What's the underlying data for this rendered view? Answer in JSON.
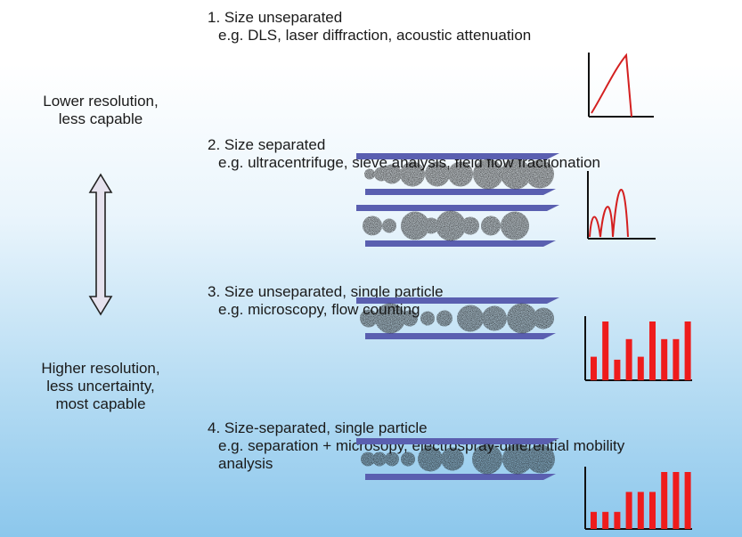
{
  "left_labels": {
    "top": [
      "Lower resolution,",
      "less capable"
    ],
    "bottom": [
      "Higher resolution,",
      "less uncertainty,",
      "most capable"
    ]
  },
  "steps": [
    {
      "title": "1. Size unseparated",
      "examples": [
        "e.g. DLS, laser diffraction, acoustic attenuation"
      ],
      "plot": "single-peak"
    },
    {
      "title": "2. Size separated",
      "examples": [
        "e.g. ultracentrifuge, sieve analysis, field flow fractionation"
      ],
      "plot": "multi-peak"
    },
    {
      "title": "3. Size unseparated, single particle",
      "examples": [
        "e.g. microscopy, flow counting"
      ],
      "plot": "histogram",
      "bars": [
        0.4,
        1.0,
        0.35,
        0.7,
        0.4,
        1.0,
        0.7,
        0.7,
        1.0
      ]
    },
    {
      "title": "4. Size-separated, single particle",
      "examples": [
        "e.g. separation + microsopy, electrospray-differential mobility",
        "analysis"
      ],
      "plot": "histogram",
      "bars": [
        0.3,
        0.3,
        0.3,
        0.65,
        0.65,
        0.65,
        1.0,
        1.0,
        1.0
      ]
    }
  ],
  "colors": {
    "channel": "#5a5fb0",
    "particle": "#111111",
    "curve": "#d42020",
    "bar": "#ee1c1c",
    "axis": "#111111",
    "arrow_fill": "#e6e2ee"
  }
}
